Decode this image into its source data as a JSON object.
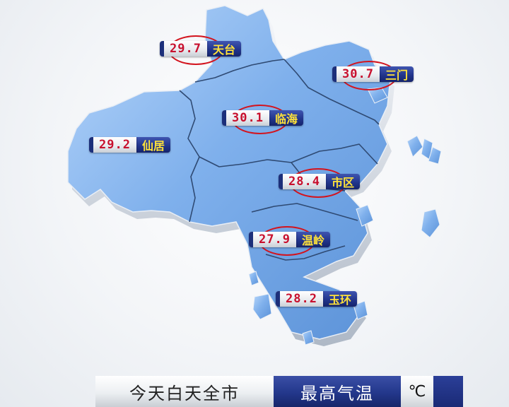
{
  "map": {
    "colors": {
      "land": "#6ea2e2",
      "land_light": "#a9cdf6",
      "border": "#3f5c86",
      "side": "#dfe5ec"
    },
    "regions": [
      {
        "id": "tiantai",
        "name": "天台",
        "value": "29.7"
      },
      {
        "id": "sanmen",
        "name": "三门",
        "value": "30.7"
      },
      {
        "id": "linhai",
        "name": "临海",
        "value": "30.1"
      },
      {
        "id": "xianju",
        "name": "仙居",
        "value": "29.2"
      },
      {
        "id": "shiqu",
        "name": "市区",
        "value": "28.4"
      },
      {
        "id": "wenling",
        "name": "温岭",
        "value": "27.9"
      },
      {
        "id": "yuhuan",
        "name": "玉环",
        "value": "28.2"
      }
    ],
    "highlight_color": "#d3141e"
  },
  "caption": {
    "left_text": "今天白天全市",
    "middle_text": "最高气温",
    "unit_text": "℃"
  }
}
